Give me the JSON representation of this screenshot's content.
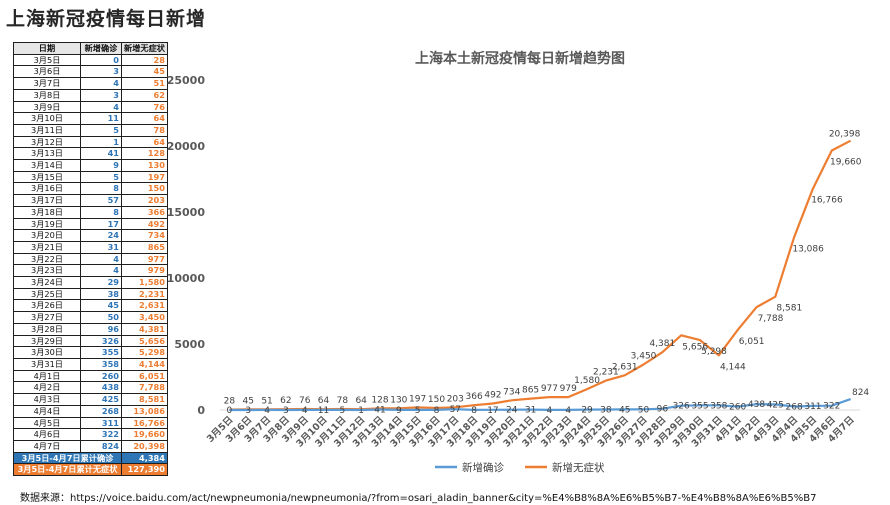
{
  "page": {
    "title": "上海新冠疫情每日新增",
    "source": "数据来源：https://voice.baidu.com/act/newpneumonia/newpneumonia/?from=osari_aladin_banner&city=%E4%B8%8A%E6%B5%B7-%E4%B8%8A%E6%B5%B7"
  },
  "table": {
    "headers": [
      "日期",
      "新增确诊",
      "新增无症状"
    ],
    "total_confirmed_label": "3月5日-4月7日累计确诊",
    "total_confirmed_value": "4,384",
    "total_asym_label": "3月5日-4月7日累计无症状",
    "total_asym_value": "127,390"
  },
  "colors": {
    "confirmed": "#5b9bd5",
    "asymptomatic": "#ed7d31",
    "table_confirmed_text": "#2e75b6",
    "total_confirmed_bg": "#2e75b6",
    "total_asym_bg": "#ed7d31"
  },
  "chart_data": {
    "type": "line",
    "title": "上海本土新冠疫情每日新增趋势图",
    "xlabel": "",
    "ylabel": "",
    "ylim": [
      0,
      25000
    ],
    "yticks": [
      0,
      5000,
      10000,
      15000,
      20000,
      25000
    ],
    "ytick_labels": [
      "0",
      "5000",
      "10000",
      "15000",
      "20000",
      "25000"
    ],
    "grid": false,
    "legend_position": "bottom",
    "categories": [
      "3月5日",
      "3月6日",
      "3月7日",
      "3月8日",
      "3月9日",
      "3月10日",
      "3月11日",
      "3月12日",
      "3月13日",
      "3月14日",
      "3月15日",
      "3月16日",
      "3月17日",
      "3月18日",
      "3月19日",
      "3月20日",
      "3月21日",
      "3月22日",
      "3月23日",
      "3月24日",
      "3月25日",
      "3月26日",
      "3月27日",
      "3月28日",
      "3月29日",
      "3月30日",
      "3月31日",
      "4月1日",
      "4月2日",
      "4月3日",
      "4月4日",
      "4月5日",
      "4月6日",
      "4月7日"
    ],
    "series": [
      {
        "name": "新增确诊",
        "values": [
          0,
          3,
          4,
          3,
          4,
          11,
          5,
          1,
          41,
          9,
          5,
          8,
          57,
          8,
          17,
          24,
          31,
          4,
          4,
          29,
          38,
          45,
          50,
          96,
          326,
          355,
          358,
          260,
          438,
          425,
          268,
          311,
          322,
          824
        ],
        "labels": [
          "0",
          "3",
          "4",
          "3",
          "4",
          "11",
          "5",
          "1",
          "41",
          "9",
          "5",
          "8",
          "57",
          "8",
          "17",
          "24",
          "31",
          "4",
          "4",
          "29",
          "38",
          "45",
          "50",
          "96",
          "326",
          "355",
          "358",
          "260",
          "438",
          "425",
          "268",
          "311",
          "322",
          "824"
        ]
      },
      {
        "name": "新增无症状",
        "values": [
          28,
          45,
          51,
          62,
          76,
          64,
          78,
          64,
          128,
          130,
          197,
          150,
          203,
          366,
          492,
          734,
          865,
          977,
          979,
          1580,
          2231,
          2631,
          3450,
          4381,
          5656,
          5298,
          4144,
          6051,
          7788,
          8581,
          13086,
          16766,
          19660,
          20398
        ],
        "labels": [
          "28",
          "45",
          "51",
          "62",
          "76",
          "64",
          "78",
          "64",
          "128",
          "130",
          "197",
          "150",
          "203",
          "366",
          "492",
          "734",
          "865",
          "977",
          "979",
          "1,580",
          "2,231",
          "2,631",
          "3,450",
          "4,381",
          "5,656",
          "5,298",
          "4,144",
          "6,051",
          "7,788",
          "8,581",
          "13,086",
          "16,766",
          "19,660",
          "20,398"
        ]
      }
    ]
  }
}
